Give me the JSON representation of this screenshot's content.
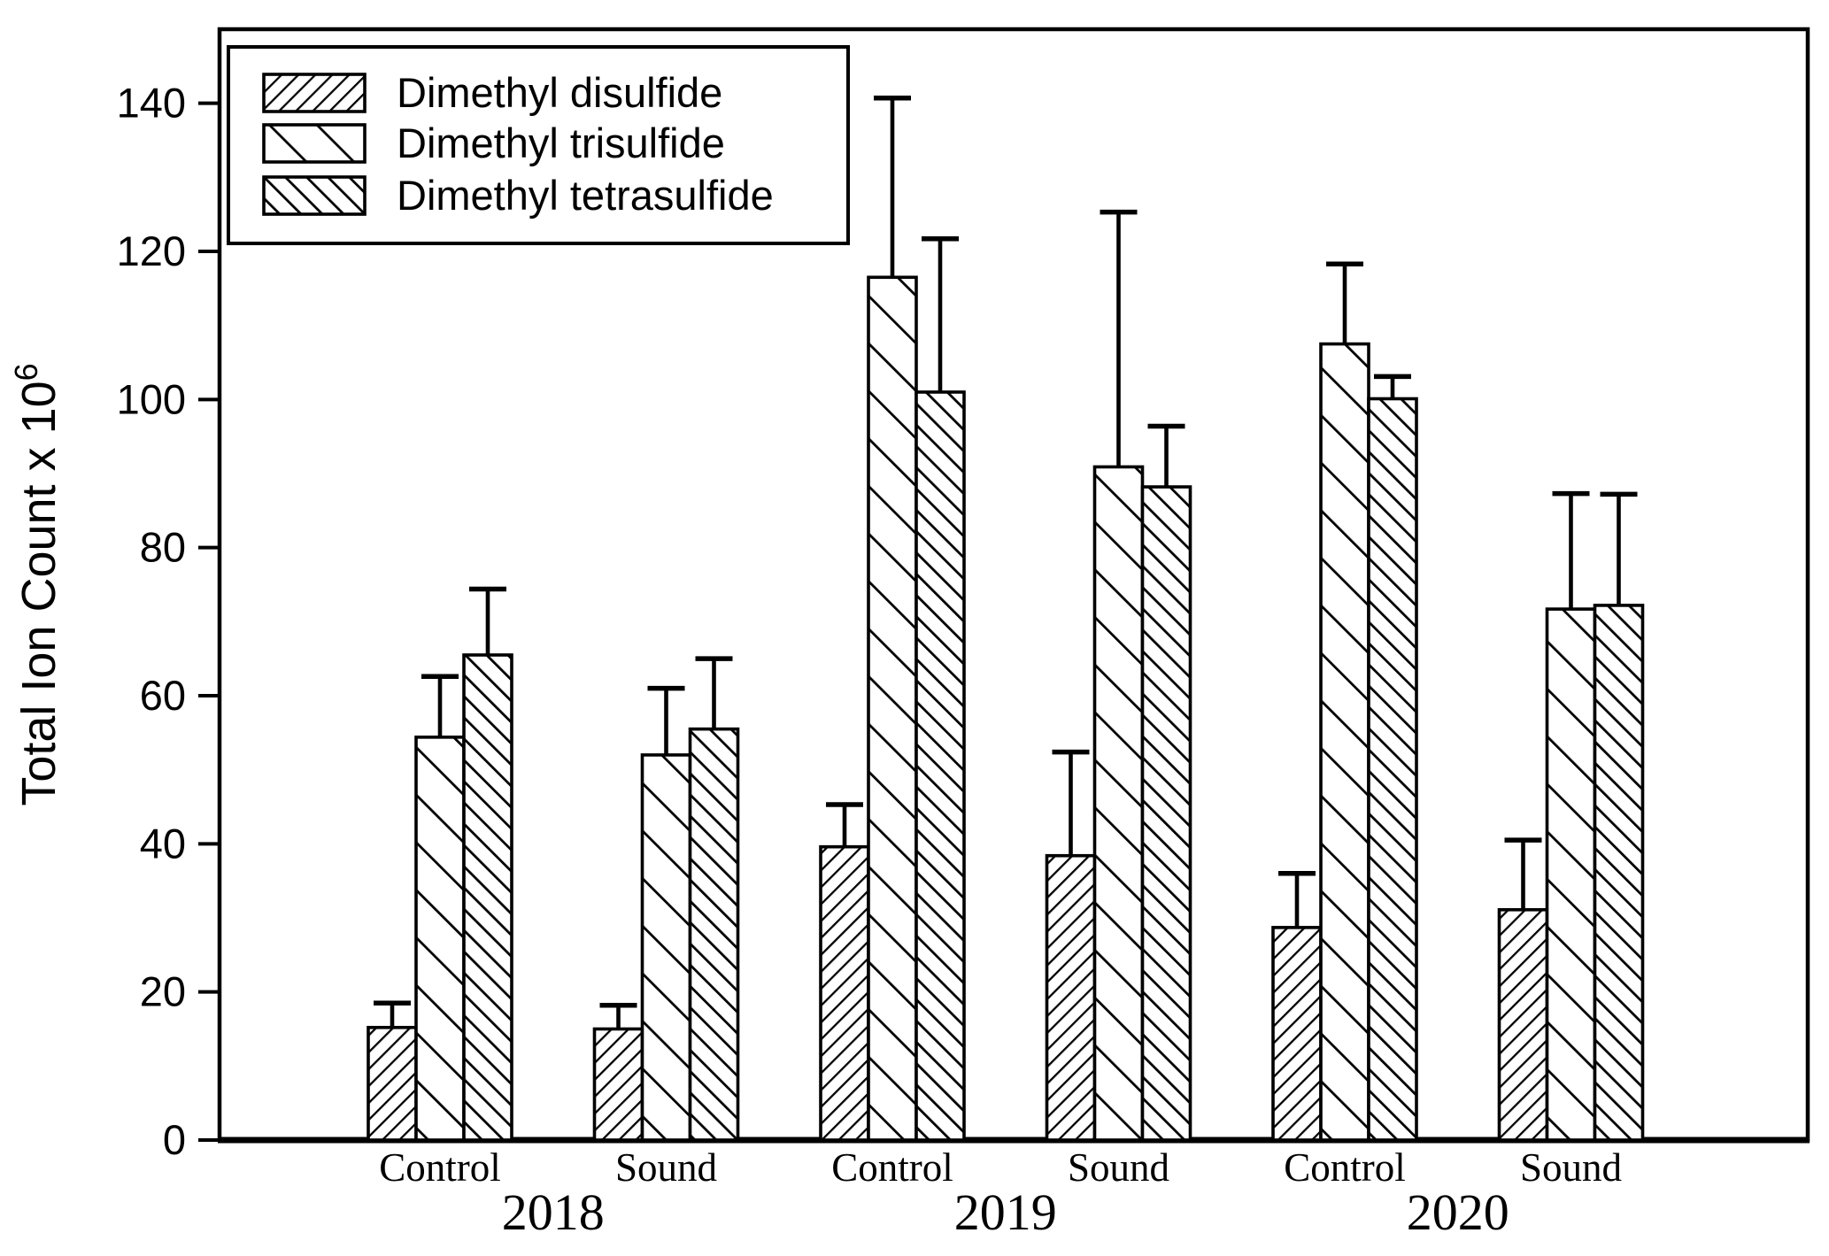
{
  "figure": {
    "background_color": "#ffffff",
    "foreground_color": "#000000"
  },
  "chart_data": {
    "type": "bar",
    "title": "",
    "xlabel": "",
    "ylabel": "Total Ion Count x 10^6",
    "ylabel_main": "Total Ion Count x 10",
    "ylabel_superscript": "6",
    "ylim": [
      0,
      150
    ],
    "yticks": [
      0,
      20,
      40,
      60,
      80,
      100,
      120,
      140
    ],
    "grid": false,
    "legend_position": "upper-left",
    "error_bars": "upper-only",
    "categories": [
      "Control",
      "Sound",
      "Control",
      "Sound",
      "Control",
      "Sound"
    ],
    "group_labels": [
      "Control",
      "Sound",
      "Control",
      "Sound",
      "Control",
      "Sound"
    ],
    "year_labels": [
      "2018",
      "2019",
      "2020"
    ],
    "series": [
      {
        "name": "Dimethyl disulfide",
        "hatch": "diagonal-forward-thin",
        "values": [
          15.2,
          15.0,
          39.6,
          38.4,
          28.7,
          31.1
        ],
        "errors": [
          3.3,
          3.2,
          5.7,
          14.0,
          7.3,
          9.4
        ]
      },
      {
        "name": "Dimethyl trisulfide",
        "hatch": "diagonal-back-wide",
        "values": [
          54.4,
          52.0,
          116.5,
          90.9,
          107.5,
          71.7
        ],
        "errors": [
          8.2,
          9.0,
          24.2,
          34.4,
          10.8,
          15.6
        ]
      },
      {
        "name": "Dimethyl tetrasulfide",
        "hatch": "diagonal-back-dense",
        "values": [
          65.5,
          55.5,
          101.0,
          88.2,
          100.1,
          72.2
        ],
        "errors": [
          8.9,
          9.5,
          20.7,
          8.2,
          3.0,
          15.0
        ]
      }
    ],
    "colors": {
      "bar_outline": "#000000",
      "bar_fill": "#ffffff",
      "axis": "#000000"
    }
  }
}
